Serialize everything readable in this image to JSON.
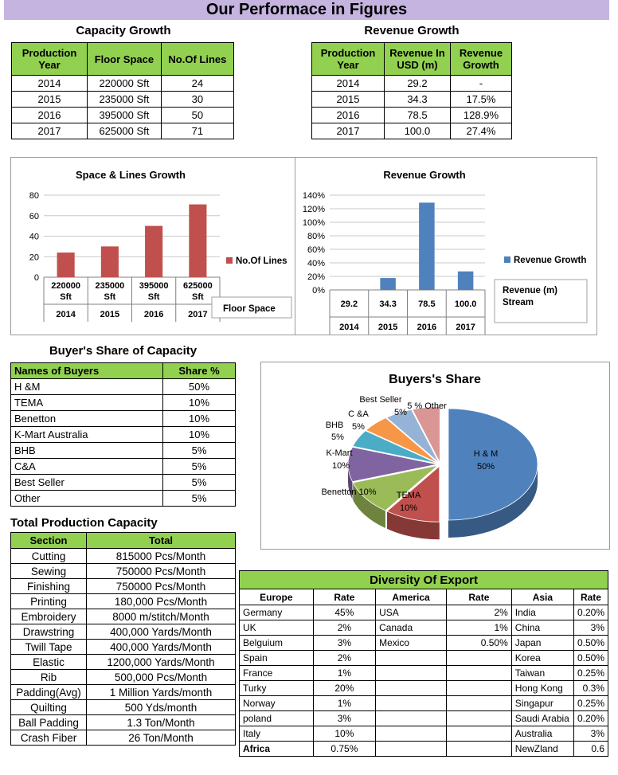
{
  "banner": "Our Performace in Figures",
  "capacity": {
    "title": "Capacity Growth",
    "headers": [
      "Production Year",
      "Floor Space",
      "No.Of Lines"
    ],
    "rows": [
      [
        "2014",
        "220000 Sft",
        "24"
      ],
      [
        "2015",
        "235000 Sft",
        "30"
      ],
      [
        "2016",
        "395000 Sft",
        "50"
      ],
      [
        "2017",
        "625000 Sft",
        "71"
      ]
    ]
  },
  "revenue": {
    "title": "Revenue Growth",
    "headers": [
      "Production Year",
      "Revenue In USD (m)",
      "Revenue Growth"
    ],
    "rows": [
      [
        "2014",
        "29.2",
        "-"
      ],
      [
        "2015",
        "34.3",
        "17.5%"
      ],
      [
        "2016",
        "78.5",
        "128.9%"
      ],
      [
        "2017",
        "100.0",
        "27.4%"
      ]
    ]
  },
  "chart_data": [
    {
      "type": "bar",
      "title": "Space & Lines Growth",
      "categories": [
        "220000 Sft",
        "235000 Sft",
        "395000 Sft",
        "625000 Sft"
      ],
      "years": [
        "2014",
        "2015",
        "2016",
        "2017"
      ],
      "series": [
        {
          "name": "No.Of Lines",
          "values": [
            24,
            30,
            50,
            71
          ]
        }
      ],
      "ylim": [
        0,
        80
      ],
      "yticks": [
        "0",
        "20",
        "40",
        "60",
        "80"
      ],
      "axis_label_box": "Floor Space",
      "color": "#c0504d",
      "grid": true,
      "legend": "right"
    },
    {
      "type": "bar",
      "title": "Revenue Growth",
      "categories": [
        "29.2",
        "34.3",
        "78.5",
        "100.0"
      ],
      "years": [
        "2014",
        "2015",
        "2016",
        "2017"
      ],
      "series": [
        {
          "name": "Revenue Growth",
          "values": [
            0,
            17.5,
            128.9,
            27.4
          ]
        }
      ],
      "ylim": [
        0,
        140
      ],
      "yticks": [
        "0%",
        "20%",
        "40%",
        "60%",
        "80%",
        "100%",
        "120%",
        "140%"
      ],
      "axis_label_box": "Revenue (m) Stream",
      "color": "#4f81bd",
      "grid": true,
      "legend": "right"
    },
    {
      "type": "pie",
      "title": "Buyers's Share",
      "slices": [
        {
          "label": "H & M",
          "pct": "50%",
          "value": 50,
          "color": "#4f81bd"
        },
        {
          "label": "TEMA",
          "pct": "10%",
          "value": 10,
          "color": "#c0504d"
        },
        {
          "label": "Benetton 10%",
          "pct": "",
          "value": 10,
          "color": "#9bbb59"
        },
        {
          "label": "K-Mart",
          "pct": "10%",
          "value": 10,
          "color": "#8064a2"
        },
        {
          "label": "BHB",
          "pct": "5%",
          "value": 5,
          "color": "#4bacc6"
        },
        {
          "label": "C &A",
          "pct": "5%",
          "value": 5,
          "color": "#f79646"
        },
        {
          "label": "Best Seller",
          "pct": "5%",
          "value": 5,
          "color": "#95b3d7"
        },
        {
          "label": "5 % Other",
          "pct": "",
          "value": 5,
          "color": "#d99694"
        }
      ]
    }
  ],
  "buyers": {
    "title": "Buyer's Share of Capacity",
    "headers": [
      "Names of Buyers",
      "Share %"
    ],
    "rows": [
      [
        "H &M",
        "50%"
      ],
      [
        "TEMA",
        "10%"
      ],
      [
        "Benetton",
        "10%"
      ],
      [
        "K-Mart Australia",
        "10%"
      ],
      [
        "BHB",
        "5%"
      ],
      [
        "C&A",
        "5%"
      ],
      [
        "Best Seller",
        "5%"
      ],
      [
        "Other",
        "5%"
      ]
    ]
  },
  "production": {
    "title": "Total Production Capacity",
    "headers": [
      "Section",
      "Total"
    ],
    "rows": [
      [
        "Cutting",
        "815000 Pcs/Month"
      ],
      [
        "Sewing",
        "750000 Pcs/Month"
      ],
      [
        "Finishing",
        "750000 Pcs/Month"
      ],
      [
        "Printing",
        "180,000 Pcs/Month"
      ],
      [
        "Embroidery",
        "8000 m/stitch/Month"
      ],
      [
        "Drawstring",
        "400,000 Yards/Month"
      ],
      [
        "Twill Tape",
        "400,000 Yards/Month"
      ],
      [
        "Elastic",
        "1200,000 Yards/Month"
      ],
      [
        "Rib",
        "500,000 Pcs/Month"
      ],
      [
        "Padding(Avg)",
        "1 Million Yards/month"
      ],
      [
        "Quilting",
        "500 Yds/month"
      ],
      [
        "Ball Padding",
        "1.3 Ton/Month"
      ],
      [
        "Crash Fiber",
        "26 Ton/Month"
      ]
    ]
  },
  "export": {
    "title": "Diversity Of Export",
    "headers": [
      "Europe",
      "Rate",
      "America",
      "Rate",
      "Asia",
      "Rate"
    ],
    "rows": [
      [
        "Germany",
        "45%",
        "USA",
        "2%",
        "India",
        "0.20%"
      ],
      [
        "UK",
        "2%",
        "Canada",
        "1%",
        "China",
        "3%"
      ],
      [
        "Belguium",
        "3%",
        "Mexico",
        "0.50%",
        "Japan",
        "0.50%"
      ],
      [
        "Spain",
        "2%",
        "",
        "",
        "Korea",
        "0.50%"
      ],
      [
        "France",
        "1%",
        "",
        "",
        "Taiwan",
        "0.25%"
      ],
      [
        "Turky",
        "20%",
        "",
        "",
        "Hong Kong",
        "0.3%"
      ],
      [
        "Norway",
        "1%",
        "",
        "",
        "Singapur",
        "0.25%"
      ],
      [
        "poland",
        "3%",
        "",
        "",
        "Saudi Arabia",
        "0.20%"
      ],
      [
        "Italy",
        "10%",
        "",
        "",
        "Australia",
        "3%"
      ],
      [
        "Africa",
        "0.75%",
        "",
        "",
        "NewZland",
        "0.6"
      ]
    ]
  }
}
